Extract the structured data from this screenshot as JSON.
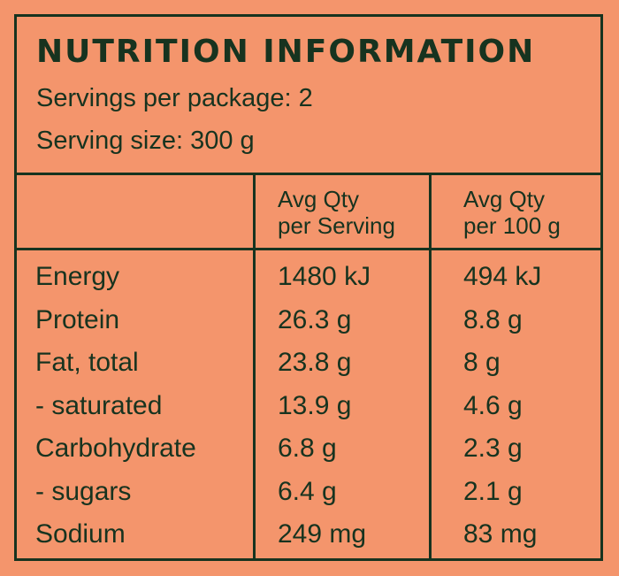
{
  "panel": {
    "title": "NUTRITION INFORMATION",
    "servings_per_package": "Servings per package: 2",
    "serving_size": "Serving size: 300 g"
  },
  "table": {
    "columns": [
      {
        "line1": "Avg Qty",
        "line2": "per Serving"
      },
      {
        "line1": "Avg Qty",
        "line2": "per 100 g"
      }
    ],
    "rows": [
      {
        "name": "Energy",
        "per_serving": "1480 kJ",
        "per_100g": "494 kJ"
      },
      {
        "name": "Protein",
        "per_serving": "26.3 g",
        "per_100g": "8.8 g"
      },
      {
        "name": "Fat, total",
        "per_serving": "23.8 g",
        "per_100g": "8 g"
      },
      {
        "name": "- saturated",
        "per_serving": "13.9 g",
        "per_100g": "4.6 g"
      },
      {
        "name": "Carbohydrate",
        "per_serving": "6.8 g",
        "per_100g": "2.3 g"
      },
      {
        "name": "- sugars",
        "per_serving": "6.4 g",
        "per_100g": "2.1 g"
      },
      {
        "name": "Sodium",
        "per_serving": "249 mg",
        "per_100g": "83 mg"
      }
    ]
  },
  "colors": {
    "background": "#f4956c",
    "ink": "#17331f"
  }
}
